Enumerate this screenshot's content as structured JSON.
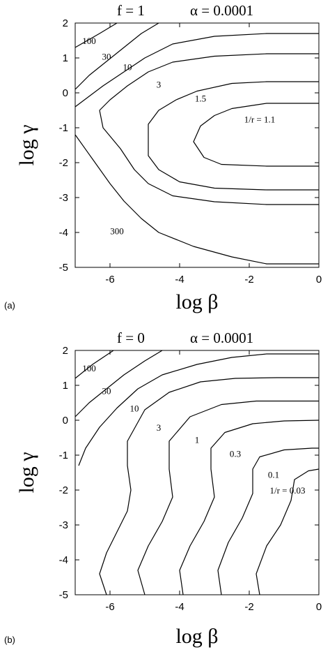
{
  "chart_data": [
    {
      "type": "line",
      "panel_label": "(a)",
      "title_left": "f = 1",
      "title_right": "α = 0.0001",
      "xlabel": "log β",
      "ylabel": "log γ",
      "xlim": [
        -7,
        0
      ],
      "ylim": [
        -5,
        2
      ],
      "xticks": [
        {
          "v": -6,
          "label": "-6"
        },
        {
          "v": -4,
          "label": "-4"
        },
        {
          "v": -2,
          "label": "-2"
        },
        {
          "v": 0,
          "label": "0"
        }
      ],
      "yticks": [
        {
          "v": 2,
          "label": "2"
        },
        {
          "v": 1,
          "label": "1"
        },
        {
          "v": 0,
          "label": "0"
        },
        {
          "v": -1,
          "label": "-1"
        },
        {
          "v": -2,
          "label": "-2"
        },
        {
          "v": -3,
          "label": "-3"
        },
        {
          "v": -4,
          "label": "-4"
        },
        {
          "v": -5,
          "label": "-5"
        }
      ],
      "series": [
        {
          "label": "100",
          "points": [
            [
              -7,
              1.3
            ],
            [
              -6.3,
              1.7
            ],
            [
              -5.8,
              2.0
            ]
          ],
          "label_pos": [
            -6.6,
            1.4
          ]
        },
        {
          "label": "30",
          "points": [
            [
              -7,
              0.1
            ],
            [
              -6.6,
              0.5
            ],
            [
              -6.1,
              0.9
            ],
            [
              -5.6,
              1.3
            ],
            [
              -5.1,
              1.7
            ],
            [
              -4.6,
              2.0
            ]
          ],
          "label_pos": [
            -6.1,
            0.95
          ]
        },
        {
          "label": "10",
          "points": [
            [
              -7,
              -0.4
            ],
            [
              -6.6,
              -0.1
            ],
            [
              -6.2,
              0.2
            ],
            [
              -5.6,
              0.6
            ],
            [
              -5.0,
              1.0
            ],
            [
              -4.2,
              1.4
            ],
            [
              -3.0,
              1.62
            ],
            [
              -1.5,
              1.7
            ],
            [
              0,
              1.7
            ]
          ],
          "label_pos": [
            -5.5,
            0.65
          ]
        },
        {
          "label": "3",
          "points": [
            [
              -6.3,
              -0.5
            ],
            [
              -6.2,
              -1.0
            ],
            [
              -5.7,
              -1.6
            ],
            [
              -5.3,
              -2.2
            ],
            [
              -4.9,
              -2.6
            ],
            [
              -4.2,
              -2.95
            ],
            [
              -3.0,
              -3.12
            ],
            [
              -1.5,
              -3.2
            ],
            [
              0,
              -3.2
            ]
          ],
          "label_pos": [
            -4.6,
            0.15
          ]
        },
        {
          "label": "300",
          "points": [
            [
              -7,
              -1.2
            ],
            [
              -6.5,
              -1.9
            ],
            [
              -6.0,
              -2.6
            ],
            [
              -5.6,
              -3.1
            ],
            [
              -5.1,
              -3.6
            ],
            [
              -4.6,
              -4.0
            ],
            [
              -3.6,
              -4.4
            ],
            [
              -2.5,
              -4.7
            ],
            [
              -1.5,
              -4.9
            ],
            [
              0,
              -4.9
            ]
          ],
          "label_pos": [
            -5.8,
            -4.05
          ]
        },
        {
          "label": "",
          "points": [
            [
              -6.3,
              -0.5
            ],
            [
              -6.0,
              -0.2
            ],
            [
              -5.5,
              0.2
            ],
            [
              -4.9,
              0.6
            ],
            [
              -4.2,
              0.88
            ],
            [
              -3.0,
              1.05
            ],
            [
              -1.5,
              1.12
            ],
            [
              0,
              1.12
            ]
          ],
          "label_pos": null
        },
        {
          "label": "1.5",
          "points": [
            [
              -4.9,
              -1.3
            ],
            [
              -4.9,
              -0.9
            ],
            [
              -4.6,
              -0.5
            ],
            [
              -4.1,
              -0.2
            ],
            [
              -3.5,
              0.05
            ],
            [
              -2.5,
              0.27
            ],
            [
              -1.5,
              0.32
            ],
            [
              0,
              0.32
            ]
          ],
          "label_pos": [
            -3.4,
            -0.25
          ]
        },
        {
          "label": "",
          "points": [
            [
              -4.9,
              -1.3
            ],
            [
              -4.9,
              -1.8
            ],
            [
              -4.6,
              -2.2
            ],
            [
              -4.0,
              -2.55
            ],
            [
              -3.0,
              -2.73
            ],
            [
              -1.5,
              -2.78
            ],
            [
              0,
              -2.78
            ]
          ],
          "label_pos": null
        },
        {
          "label": "1/r = 1.1",
          "points": [
            [
              0,
              -0.3
            ],
            [
              -1.5,
              -0.3
            ],
            [
              -2.5,
              -0.45
            ],
            [
              -3.0,
              -0.65
            ],
            [
              -3.4,
              -0.95
            ],
            [
              -3.6,
              -1.4
            ],
            [
              -3.3,
              -1.85
            ],
            [
              -2.8,
              -2.05
            ],
            [
              -1.5,
              -2.1
            ],
            [
              0,
              -2.1
            ]
          ],
          "label_pos": [
            -1.7,
            -0.85
          ]
        }
      ]
    },
    {
      "type": "line",
      "panel_label": "(b)",
      "title_left": "f = 0",
      "title_right": "α = 0.0001",
      "xlabel": "log β",
      "ylabel": "log γ",
      "xlim": [
        -7,
        0
      ],
      "ylim": [
        -5,
        2
      ],
      "xticks": [
        {
          "v": -6,
          "label": "-6"
        },
        {
          "v": -4,
          "label": "-4"
        },
        {
          "v": -2,
          "label": "-2"
        },
        {
          "v": 0,
          "label": "0"
        }
      ],
      "yticks": [
        {
          "v": 2,
          "label": "2"
        },
        {
          "v": 1,
          "label": "1"
        },
        {
          "v": 0,
          "label": "0"
        },
        {
          "v": -1,
          "label": "-1"
        },
        {
          "v": -2,
          "label": "-2"
        },
        {
          "v": -3,
          "label": "-3"
        },
        {
          "v": -4,
          "label": "-4"
        },
        {
          "v": -5,
          "label": "-5"
        }
      ],
      "series": [
        {
          "label": "100",
          "points": [
            [
              -7,
              1.2
            ],
            [
              -6.5,
              1.6
            ],
            [
              -5.9,
              2.0
            ]
          ],
          "label_pos": [
            -6.6,
            1.4
          ]
        },
        {
          "label": "30",
          "points": [
            [
              -7,
              0.1
            ],
            [
              -6.6,
              0.5
            ],
            [
              -6.1,
              0.9
            ],
            [
              -5.6,
              1.3
            ],
            [
              -5.0,
              1.7
            ],
            [
              -4.5,
              2.0
            ]
          ],
          "label_pos": [
            -6.1,
            0.75
          ]
        },
        {
          "label": "10",
          "points": [
            [
              -6.9,
              -1.3
            ],
            [
              -6.7,
              -0.8
            ],
            [
              -6.3,
              -0.2
            ],
            [
              -5.8,
              0.35
            ],
            [
              -5.2,
              0.9
            ],
            [
              -4.5,
              1.3
            ],
            [
              -3.5,
              1.6
            ],
            [
              -2.5,
              1.8
            ],
            [
              -1.5,
              1.9
            ],
            [
              0,
              1.9
            ]
          ],
          "label_pos": [
            -5.3,
            0.25
          ]
        },
        {
          "label": "3",
          "points": [
            [
              -6.1,
              -5.0
            ],
            [
              -6.3,
              -4.4
            ],
            [
              -6.1,
              -3.8
            ],
            [
              -5.8,
              -3.2
            ],
            [
              -5.5,
              -2.6
            ],
            [
              -5.4,
              -2.0
            ],
            [
              -5.5,
              -1.3
            ],
            [
              -5.5,
              -0.6
            ],
            [
              -5.0,
              0.3
            ],
            [
              -4.3,
              0.8
            ],
            [
              -3.4,
              1.1
            ],
            [
              -2.4,
              1.2
            ],
            [
              -1.2,
              1.22
            ],
            [
              0,
              1.22
            ]
          ],
          "label_pos": [
            -4.6,
            -0.3
          ]
        },
        {
          "label": "1",
          "points": [
            [
              -5.0,
              -5.0
            ],
            [
              -5.2,
              -4.3
            ],
            [
              -4.9,
              -3.6
            ],
            [
              -4.5,
              -2.9
            ],
            [
              -4.2,
              -2.2
            ],
            [
              -4.3,
              -1.4
            ],
            [
              -4.3,
              -0.6
            ],
            [
              -3.7,
              0.1
            ],
            [
              -2.8,
              0.45
            ],
            [
              -1.8,
              0.55
            ],
            [
              -0.8,
              0.55
            ],
            [
              0,
              0.55
            ]
          ],
          "label_pos": [
            -3.5,
            -0.65
          ]
        },
        {
          "label": "0.3",
          "points": [
            [
              -3.9,
              -5.0
            ],
            [
              -4.0,
              -4.3
            ],
            [
              -3.7,
              -3.6
            ],
            [
              -3.3,
              -2.9
            ],
            [
              -3.0,
              -2.2
            ],
            [
              -3.1,
              -1.4
            ],
            [
              -3.1,
              -0.8
            ],
            [
              -2.7,
              -0.35
            ],
            [
              -1.9,
              -0.1
            ],
            [
              -1.0,
              -0.02
            ],
            [
              0,
              0.0
            ]
          ],
          "label_pos": [
            -2.4,
            -1.05
          ]
        },
        {
          "label": "0.1",
          "points": [
            [
              -2.8,
              -5.0
            ],
            [
              -2.9,
              -4.3
            ],
            [
              -2.6,
              -3.5
            ],
            [
              -2.2,
              -2.8
            ],
            [
              -1.9,
              -2.1
            ],
            [
              -1.9,
              -1.4
            ],
            [
              -1.7,
              -1.05
            ],
            [
              -1.0,
              -0.85
            ],
            [
              -0.2,
              -0.8
            ],
            [
              0,
              -0.8
            ]
          ],
          "label_pos": [
            -1.3,
            -1.65
          ]
        },
        {
          "label": "1/r = 0.03",
          "points": [
            [
              -1.7,
              -5.0
            ],
            [
              -1.8,
              -4.4
            ],
            [
              -1.5,
              -3.6
            ],
            [
              -1.1,
              -3.0
            ],
            [
              -0.8,
              -2.3
            ],
            [
              -0.7,
              -1.7
            ],
            [
              -0.3,
              -1.45
            ],
            [
              0,
              -1.4
            ]
          ],
          "label_pos": [
            -0.9,
            -2.1
          ]
        }
      ]
    }
  ]
}
